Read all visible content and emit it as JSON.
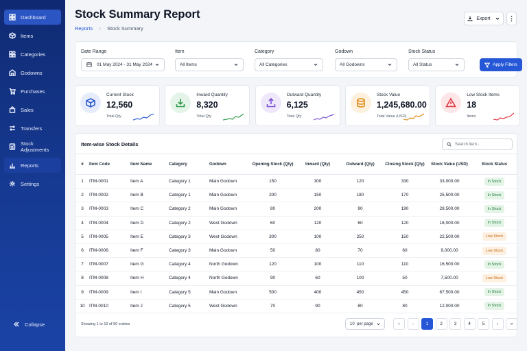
{
  "sidebar": {
    "items": [
      {
        "label": "Dashboard",
        "icon": "grid-icon"
      },
      {
        "label": "Items",
        "icon": "box-icon"
      },
      {
        "label": "Categories",
        "icon": "categories-icon"
      },
      {
        "label": "Godowns",
        "icon": "warehouse-icon"
      },
      {
        "label": "Purchases",
        "icon": "cart-icon"
      },
      {
        "label": "Sales",
        "icon": "sales-icon"
      },
      {
        "label": "Transfers",
        "icon": "transfer-icon"
      },
      {
        "label": "Stock Adjustments",
        "icon": "adjust-icon"
      },
      {
        "label": "Reports",
        "icon": "chart-icon"
      },
      {
        "label": "Settings",
        "icon": "gear-icon"
      }
    ],
    "collapse_label": "Collapse"
  },
  "header": {
    "title": "Stock Summary Report",
    "breadcrumb": {
      "link": "Reports",
      "current": "Stock Summary"
    },
    "export_label": "Export",
    "more_label": "⋮"
  },
  "filters": {
    "date_range": {
      "label": "Date Range",
      "value": "01 May 2024 - 31 May 2024"
    },
    "item": {
      "label": "Item",
      "value": "All Items"
    },
    "category": {
      "label": "Category",
      "value": "All Categories"
    },
    "godown": {
      "label": "Godown",
      "value": "All Godowns"
    },
    "stock_status": {
      "label": "Stock Status",
      "value": "All Status"
    },
    "apply_label": "Apply Filters"
  },
  "kpis": [
    {
      "label": "Current Stock",
      "value": "12,560",
      "sub": "Total Qty",
      "color": "#2b59d1",
      "bg": "#e6ecfb"
    },
    {
      "label": "Inward Quantity",
      "value": "8,320",
      "sub": "Total Qty",
      "color": "#2a9a4a",
      "bg": "#e4f4e8"
    },
    {
      "label": "Outward Quantity",
      "value": "6,125",
      "sub": "Total Qty",
      "color": "#7a4fd6",
      "bg": "#efe8fb"
    },
    {
      "label": "Stock Value",
      "value": "1,245,680.00",
      "sub": "Total Value (USD)",
      "color": "#e08a16",
      "bg": "#fdf0dc"
    },
    {
      "label": "Low Stock Items",
      "value": "18",
      "sub": "Items",
      "color": "#e0353f",
      "bg": "#fde6e8"
    }
  ],
  "table": {
    "title": "Item-wise Stock Details",
    "search_placeholder": "Search item...",
    "columns": [
      "#",
      "Item Code",
      "Item Name",
      "Category",
      "Godown",
      "Opening Stock (Qty)",
      "Inward (Qty)",
      "Outward (Qty)",
      "Closing Stock (Qty)",
      "Stock Value (USD)",
      "Stock Status"
    ],
    "rows": [
      [
        "1",
        "ITM-0001",
        "Item A",
        "Category 1",
        "Main Godown",
        "150",
        "300",
        "120",
        "330",
        "33,000.00",
        "In Stock"
      ],
      [
        "2",
        "ITM-0002",
        "Item B",
        "Category 1",
        "Main Godown",
        "200",
        "150",
        "180",
        "170",
        "25,500.00",
        "In Stock"
      ],
      [
        "3",
        "ITM-0003",
        "Item C",
        "Category 2",
        "Main Godown",
        "80",
        "200",
        "90",
        "190",
        "28,500.00",
        "In Stock"
      ],
      [
        "4",
        "ITM-0004",
        "Item D",
        "Category 2",
        "West Godown",
        "60",
        "120",
        "60",
        "120",
        "18,000.00",
        "In Stock"
      ],
      [
        "5",
        "ITM-0005",
        "Item E",
        "Category 3",
        "West Godown",
        "300",
        "100",
        "250",
        "150",
        "22,500.00",
        "Low Stock"
      ],
      [
        "6",
        "ITM-0006",
        "Item F",
        "Category 3",
        "Main Godown",
        "50",
        "80",
        "70",
        "60",
        "9,000.00",
        "Low Stock"
      ],
      [
        "7",
        "ITM-0007",
        "Item G",
        "Category 4",
        "North Godown",
        "120",
        "100",
        "110",
        "110",
        "16,500.00",
        "In Stock"
      ],
      [
        "8",
        "ITM-0008",
        "Item H",
        "Category 4",
        "North Godown",
        "90",
        "60",
        "100",
        "50",
        "7,500.00",
        "Low Stock"
      ],
      [
        "9",
        "ITM-0009",
        "Item I",
        "Category 5",
        "Main Godown",
        "500",
        "400",
        "450",
        "450",
        "67,500.00",
        "In Stock"
      ],
      [
        "10",
        "ITM-0010",
        "Item J",
        "Category 5",
        "West Godown",
        "70",
        "90",
        "80",
        "80",
        "12,000.00",
        "In Stock"
      ]
    ],
    "showing": "Showing 1 to 10 of 50 entries",
    "per_page": "10  per page",
    "pages": [
      "1",
      "2",
      "3",
      "4",
      "5"
    ],
    "current_page": "1"
  }
}
